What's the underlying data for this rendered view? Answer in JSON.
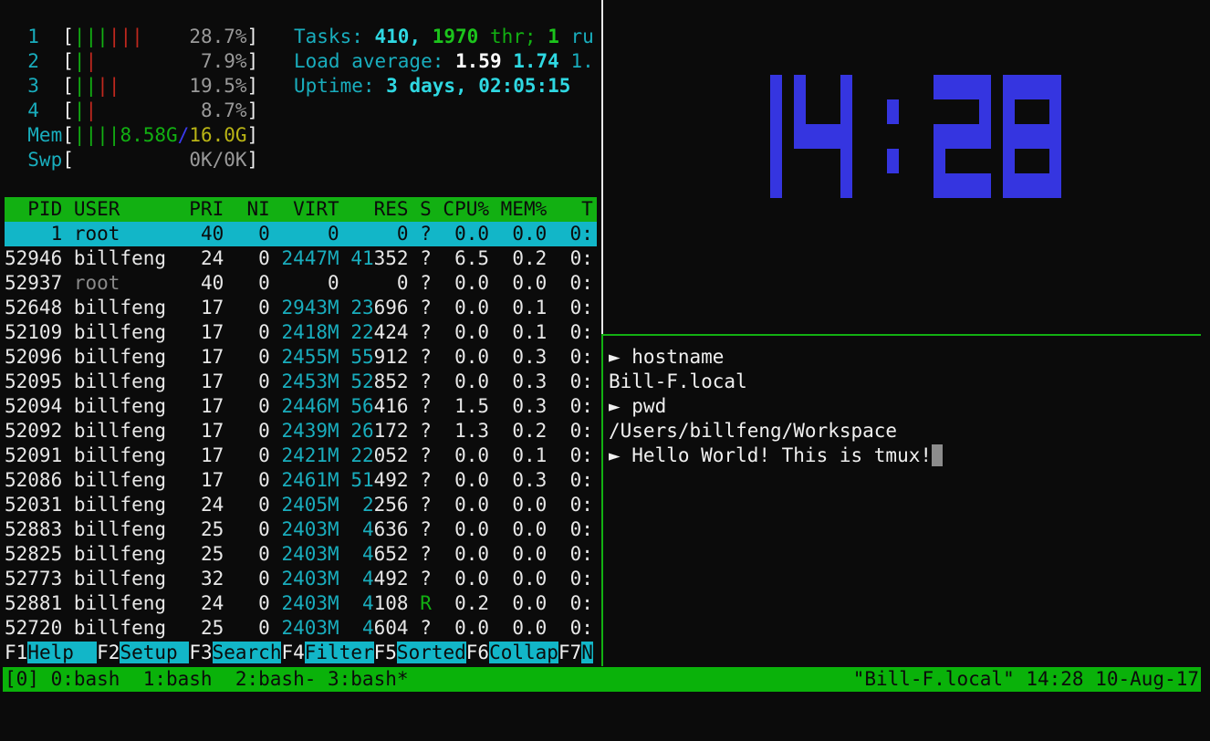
{
  "meters": [
    {
      "label": "1",
      "bars": [
        [
          "g",
          3
        ],
        [
          "r",
          3
        ]
      ],
      "value": "28.7%"
    },
    {
      "label": "2",
      "bars": [
        [
          "g",
          1
        ],
        [
          "r",
          1
        ]
      ],
      "value": "7.9%"
    },
    {
      "label": "3",
      "bars": [
        [
          "g",
          2
        ],
        [
          "r",
          2
        ]
      ],
      "value": "19.5%"
    },
    {
      "label": "4",
      "bars": [
        [
          "g",
          1
        ],
        [
          "r",
          1
        ]
      ],
      "value": "8.7%"
    }
  ],
  "mem": {
    "label": "Mem",
    "bars": 4,
    "used": "8.58G",
    "sep": "/",
    "total": "16.0G"
  },
  "swp": {
    "label": "Swp",
    "value": "0K/0K"
  },
  "tasks": {
    "label": "Tasks: ",
    "count": "410",
    "comma": ", ",
    "threads": "1970",
    "thr": " thr; ",
    "running": "1",
    "tail": " ru"
  },
  "load": {
    "label": "Load average: ",
    "l1": "1.59",
    "l5": "1.74",
    "l15": "1."
  },
  "uptime": {
    "label": "Uptime: ",
    "value": "3 days, 02:05:15"
  },
  "table": {
    "header": "  PID USER      PRI  NI  VIRT   RES S CPU% MEM%   T",
    "rows": [
      {
        "pid": "1",
        "user": "root",
        "pri": "40",
        "ni": "0",
        "virt": "0",
        "res": "0",
        "s": "?",
        "cpu": "0.0",
        "mem": "0.0",
        "time": "0:",
        "selected": true
      },
      {
        "pid": "52946",
        "user": "billfeng",
        "pri": "24",
        "ni": "0",
        "virt": "2447M",
        "res": "41352",
        "s": "?",
        "cpu": "6.5",
        "mem": "0.2",
        "time": "0:"
      },
      {
        "pid": "52937",
        "user": "root",
        "pri": "40",
        "ni": "0",
        "virt": "0",
        "res": "0",
        "s": "?",
        "cpu": "0.0",
        "mem": "0.0",
        "time": "0:",
        "dim_user": true
      },
      {
        "pid": "52648",
        "user": "billfeng",
        "pri": "17",
        "ni": "0",
        "virt": "2943M",
        "res": "23696",
        "s": "?",
        "cpu": "0.0",
        "mem": "0.1",
        "time": "0:"
      },
      {
        "pid": "52109",
        "user": "billfeng",
        "pri": "17",
        "ni": "0",
        "virt": "2418M",
        "res": "22424",
        "s": "?",
        "cpu": "0.0",
        "mem": "0.1",
        "time": "0:"
      },
      {
        "pid": "52096",
        "user": "billfeng",
        "pri": "17",
        "ni": "0",
        "virt": "2455M",
        "res": "55912",
        "s": "?",
        "cpu": "0.0",
        "mem": "0.3",
        "time": "0:"
      },
      {
        "pid": "52095",
        "user": "billfeng",
        "pri": "17",
        "ni": "0",
        "virt": "2453M",
        "res": "52852",
        "s": "?",
        "cpu": "0.0",
        "mem": "0.3",
        "time": "0:"
      },
      {
        "pid": "52094",
        "user": "billfeng",
        "pri": "17",
        "ni": "0",
        "virt": "2446M",
        "res": "56416",
        "s": "?",
        "cpu": "1.5",
        "mem": "0.3",
        "time": "0:"
      },
      {
        "pid": "52092",
        "user": "billfeng",
        "pri": "17",
        "ni": "0",
        "virt": "2439M",
        "res": "26172",
        "s": "?",
        "cpu": "1.3",
        "mem": "0.2",
        "time": "0:"
      },
      {
        "pid": "52091",
        "user": "billfeng",
        "pri": "17",
        "ni": "0",
        "virt": "2421M",
        "res": "22052",
        "s": "?",
        "cpu": "0.0",
        "mem": "0.1",
        "time": "0:"
      },
      {
        "pid": "52086",
        "user": "billfeng",
        "pri": "17",
        "ni": "0",
        "virt": "2461M",
        "res": "51492",
        "s": "?",
        "cpu": "0.0",
        "mem": "0.3",
        "time": "0:"
      },
      {
        "pid": "52031",
        "user": "billfeng",
        "pri": "24",
        "ni": "0",
        "virt": "2405M",
        "res": "2256",
        "s": "?",
        "cpu": "0.0",
        "mem": "0.0",
        "time": "0:"
      },
      {
        "pid": "52883",
        "user": "billfeng",
        "pri": "25",
        "ni": "0",
        "virt": "2403M",
        "res": "4636",
        "s": "?",
        "cpu": "0.0",
        "mem": "0.0",
        "time": "0:"
      },
      {
        "pid": "52825",
        "user": "billfeng",
        "pri": "25",
        "ni": "0",
        "virt": "2403M",
        "res": "4652",
        "s": "?",
        "cpu": "0.0",
        "mem": "0.0",
        "time": "0:"
      },
      {
        "pid": "52773",
        "user": "billfeng",
        "pri": "32",
        "ni": "0",
        "virt": "2403M",
        "res": "4492",
        "s": "?",
        "cpu": "0.0",
        "mem": "0.0",
        "time": "0:"
      },
      {
        "pid": "52881",
        "user": "billfeng",
        "pri": "24",
        "ni": "0",
        "virt": "2403M",
        "res": "4108",
        "s": "R",
        "cpu": "0.2",
        "mem": "0.0",
        "time": "0:"
      },
      {
        "pid": "52720",
        "user": "billfeng",
        "pri": "25",
        "ni": "0",
        "virt": "2403M",
        "res": "4604",
        "s": "?",
        "cpu": "0.0",
        "mem": "0.0",
        "time": "0:"
      }
    ]
  },
  "fkeys": [
    {
      "key": "F1",
      "label": "Help  "
    },
    {
      "key": "F2",
      "label": "Setup "
    },
    {
      "key": "F3",
      "label": "Search"
    },
    {
      "key": "F4",
      "label": "Filter"
    },
    {
      "key": "F5",
      "label": "Sorted"
    },
    {
      "key": "F6",
      "label": "Collap"
    },
    {
      "key": "F7",
      "label": "N"
    }
  ],
  "clock": {
    "time": "14:28",
    "color": "#3535e0"
  },
  "terminal": {
    "lines": [
      "► hostname",
      "Bill-F.local",
      "► pwd",
      "/Users/billfeng/Workspace",
      "► Hello World! This is tmux!"
    ]
  },
  "status": {
    "left": "[0] 0:bash  1:bash  2:bash- 3:bash*",
    "right": "\"Bill-F.local\" 14:28 10-Aug-17",
    "color": "#0ab20a"
  }
}
